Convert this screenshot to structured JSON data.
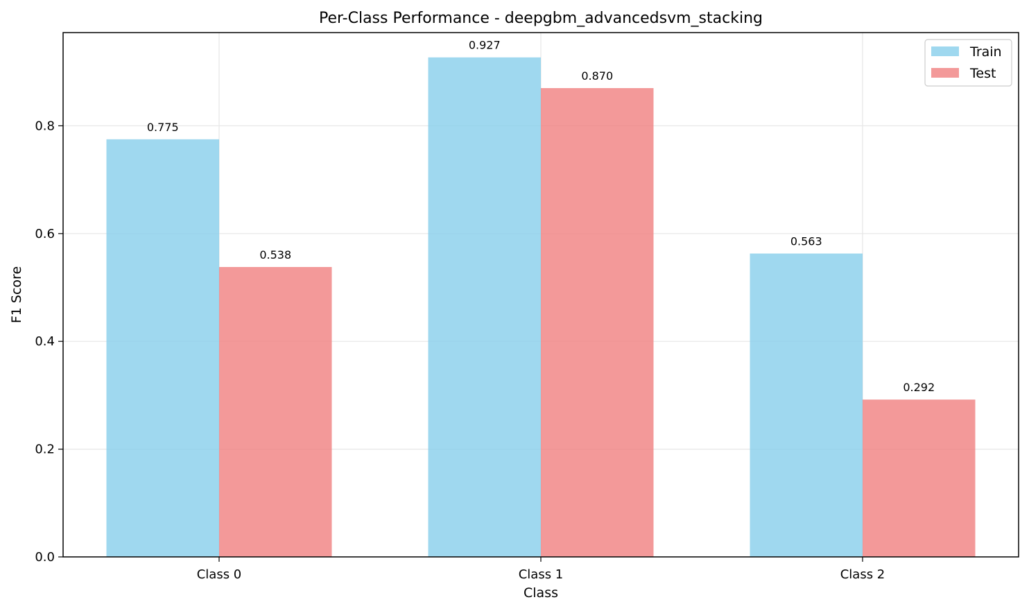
{
  "chart_data": {
    "type": "bar",
    "title": "Per-Class Performance - deepgbm_advancedsvm_stacking",
    "xlabel": "Class",
    "ylabel": "F1 Score",
    "categories": [
      "Class 0",
      "Class 1",
      "Class 2"
    ],
    "series": [
      {
        "name": "Train",
        "values": [
          0.775,
          0.927,
          0.563
        ],
        "labels": [
          "0.775",
          "0.927",
          "0.563"
        ],
        "color": "#87CEEB"
      },
      {
        "name": "Test",
        "values": [
          0.538,
          0.87,
          0.292
        ],
        "labels": [
          "0.538",
          "0.870",
          "0.292"
        ],
        "color": "#F08080"
      }
    ],
    "ylim": [
      0,
      0.973
    ],
    "yticks": [
      0.0,
      0.2,
      0.4,
      0.6,
      0.8
    ],
    "ytick_labels": [
      "0.0",
      "0.2",
      "0.4",
      "0.6",
      "0.8"
    ],
    "grid": true,
    "legend_position": "top-right"
  }
}
